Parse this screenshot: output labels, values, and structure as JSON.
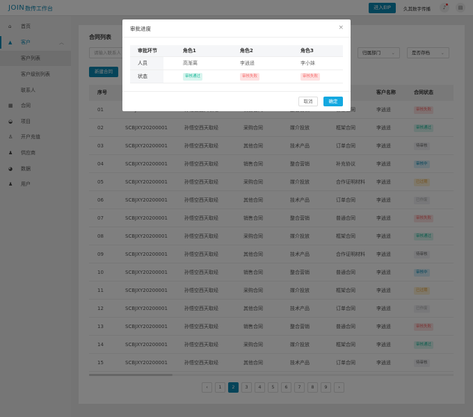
{
  "header": {
    "logo": "JOIN",
    "app_title": "数传工作台",
    "eip_button": "进入EIP",
    "company": "久其数字传播"
  },
  "sidebar": {
    "items": [
      {
        "label": "首页",
        "icon": "home-icon"
      },
      {
        "label": "客户",
        "icon": "customer-icon",
        "active": true,
        "children": [
          "客户列表",
          "客户级别列表",
          "联系人"
        ]
      },
      {
        "label": "合同",
        "icon": "contract-icon"
      },
      {
        "label": "项目",
        "icon": "project-icon"
      },
      {
        "label": "开户充值",
        "icon": "recharge-icon"
      },
      {
        "label": "供应商",
        "icon": "supplier-icon"
      },
      {
        "label": "数据",
        "icon": "chart-pie-icon"
      },
      {
        "label": "用户",
        "icon": "user-icon"
      }
    ]
  },
  "main": {
    "title": "合同列表",
    "search_placeholder": "请输入联系人",
    "filters": [
      "归属部门",
      "是否存档"
    ],
    "new_button": "新建合同",
    "columns": [
      "序号",
      "",
      "",
      "",
      "",
      "",
      "客户名称",
      "合同状态"
    ],
    "rows": [
      [
        "01",
        "SCBJXY20200001",
        "孙悟空西天取经",
        "销售合同",
        "整合营销",
        "普通合同",
        "李逍遥",
        "审核失败"
      ],
      [
        "02",
        "SCBJXY20200001",
        "孙悟空西天取经",
        "采购合同",
        "媒介投放",
        "框架合同",
        "李逍遥",
        "审核通过"
      ],
      [
        "03",
        "SCBJXY20200001",
        "孙悟空西天取经",
        "其他合同",
        "技术产品",
        "订单合同",
        "李逍遥",
        "待审核"
      ],
      [
        "04",
        "SCBJXY20200001",
        "孙悟空西天取经",
        "销售合同",
        "整合营销",
        "补充协议",
        "李逍遥",
        "审核中"
      ],
      [
        "05",
        "SCBJXY20200001",
        "孙悟空西天取经",
        "采购合同",
        "媒介投放",
        "合作证明材料",
        "李逍遥",
        "已过期"
      ],
      [
        "06",
        "SCBJXY20200001",
        "孙悟空西天取经",
        "其他合同",
        "技术产品",
        "订单合同",
        "李逍遥",
        "已作废"
      ],
      [
        "07",
        "SCBJXY20200001",
        "孙悟空西天取经",
        "销售合同",
        "整合营销",
        "普通合同",
        "李逍遥",
        "审核失败"
      ],
      [
        "08",
        "SCBJXY20200001",
        "孙悟空西天取经",
        "采购合同",
        "媒介投放",
        "框架合同",
        "李逍遥",
        "审核通过"
      ],
      [
        "09",
        "SCBJXY20200001",
        "孙悟空西天取经",
        "其他合同",
        "技术产品",
        "合作证明材料",
        "李逍遥",
        "待审核"
      ],
      [
        "10",
        "SCBJXY20200001",
        "孙悟空西天取经",
        "销售合同",
        "整合营销",
        "普通合同",
        "李逍遥",
        "审核中"
      ],
      [
        "11",
        "SCBJXY20200001",
        "孙悟空西天取经",
        "采购合同",
        "媒介投放",
        "框架合同",
        "李逍遥",
        "已过期"
      ],
      [
        "12",
        "SCBJXY20200001",
        "孙悟空西天取经",
        "其他合同",
        "技术产品",
        "订单合同",
        "李逍遥",
        "已作废"
      ],
      [
        "13",
        "SCBJXY20200001",
        "孙悟空西天取经",
        "销售合同",
        "整合营销",
        "普通合同",
        "李逍遥",
        "审核失败"
      ],
      [
        "14",
        "SCBJXY20200001",
        "孙悟空西天取经",
        "采购合同",
        "媒介投放",
        "框架合同",
        "李逍遥",
        "审核通过"
      ],
      [
        "15",
        "SCBJXY20200001",
        "孙悟空西天取经",
        "其他合同",
        "技术产品",
        "订单合同",
        "李逍遥",
        "待审核"
      ]
    ],
    "pagination": {
      "pages": [
        "1",
        "2",
        "3",
        "4",
        "5",
        "6",
        "7",
        "8",
        "9"
      ],
      "current": "2"
    }
  },
  "status_colors": {
    "审核失败": {
      "bg": "#fde2e2",
      "fg": "#f56c6c"
    },
    "审核通过": {
      "bg": "#d9f5ef",
      "fg": "#1fb89a"
    },
    "待审核": {
      "bg": "#f0f1f4",
      "fg": "#666666"
    },
    "审核中": {
      "bg": "#d6eef8",
      "fg": "#0b88b3"
    },
    "已过期": {
      "bg": "#fdf0d5",
      "fg": "#e6a23c"
    },
    "已作废": {
      "bg": "#f0f1f4",
      "fg": "#aaaaaa"
    }
  },
  "modal": {
    "title": "审批进度",
    "headers": [
      "审批环节",
      "角色1",
      "角色2",
      "角色3"
    ],
    "people_label": "人员",
    "people": [
      "高渐离",
      "李逍遥",
      "李小妹"
    ],
    "status_label": "状态",
    "statuses": [
      "审核通过",
      "审核失败",
      "审核失败"
    ],
    "cancel": "取消",
    "ok": "确定"
  },
  "colors": {
    "brand": "#0b88b3",
    "primary_button": "#13a8e0"
  }
}
